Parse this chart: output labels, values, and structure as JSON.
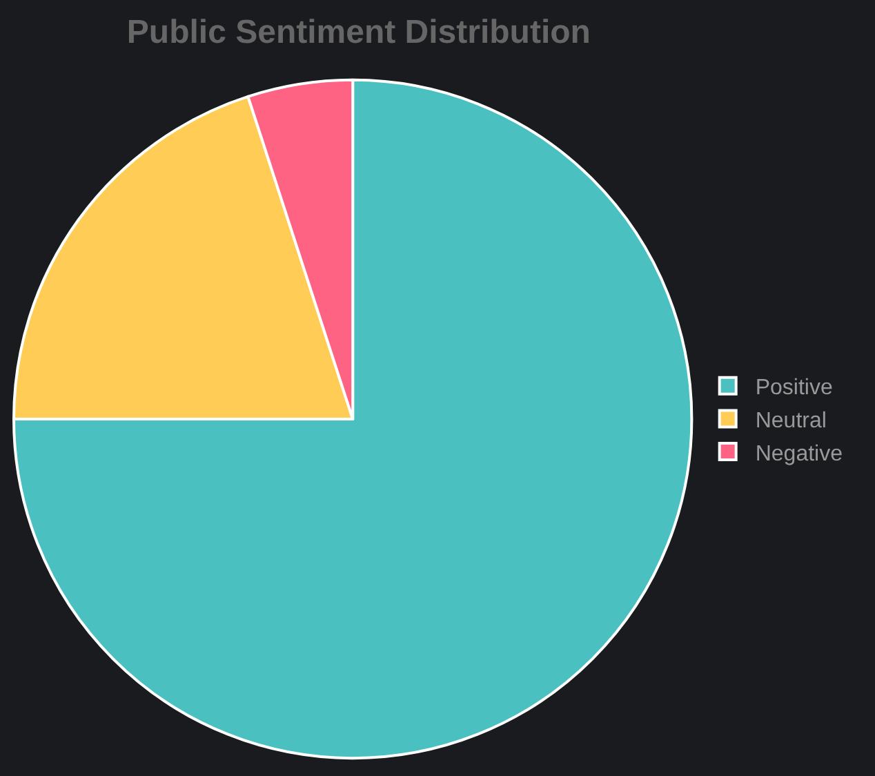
{
  "chart_data": {
    "type": "pie",
    "title": "Public Sentiment Distribution",
    "categories": [
      "Positive",
      "Neutral",
      "Negative"
    ],
    "values": [
      75,
      20,
      5
    ],
    "colors": [
      "#4bc0c0",
      "#ffcd56",
      "#ff6384"
    ],
    "legend": "right"
  }
}
